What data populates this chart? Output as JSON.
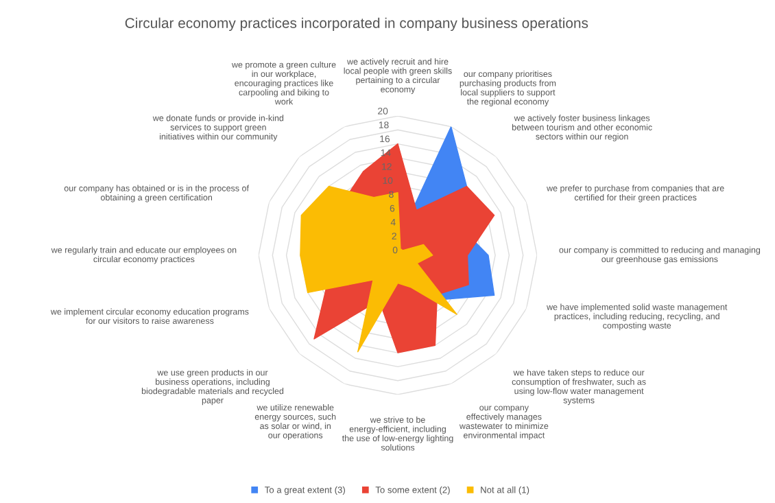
{
  "chart_data": {
    "type": "radar",
    "title": "Circular economy practices incorporated in company business operations",
    "categories": [
      "we actively recruit and hire local people with green skills pertaining to a circular economy",
      "our company prioritises purchasing products from local suppliers to support the regional economy",
      "we actively foster business linkages between tourism and other economic sectors within our region",
      "we prefer to purchase from companies that are certified for their green practices",
      "our company is committed to reducing and managing our greenhouse gas emissions",
      "we have implemented solid waste management practices, including reducing, recycling, and composting waste",
      "we have taken steps to reduce our consumption of freshwater, such as using low-flow water management systems",
      "our company effectively manages wastewater to minimize environmental impact",
      "we strive to be energy-efficient, including the use of low-energy lighting solutions",
      "we utilize renewable energy sources, such as solar or wind, in our operations",
      "we use green products in our business operations, including biodegradable materials and recycled paper",
      "we implement circular economy education programs for our visitors to raise awareness",
      "we regularly train and educate our employees on circular economy practices",
      "our company has obtained or is in the process of obtaining a green certification",
      "we donate funds or provide in-kind services to support green initiatives within our community",
      "we promote a green culture in our workplace, encouraging practices like carpooling and biking to work"
    ],
    "series": [
      {
        "name": "To a great extent (3)",
        "color": "#4285f4",
        "values": [
          2,
          20,
          14,
          10,
          13,
          15,
          9,
          null,
          null,
          8,
          null,
          null,
          null,
          null,
          null,
          null
        ]
      },
      {
        "name": "To some extent (2)",
        "color": "#ea4335",
        "values": [
          16,
          7,
          14,
          15,
          10,
          11,
          8,
          14,
          14,
          7,
          17,
          11,
          null,
          null,
          11,
          13
        ]
      },
      {
        "name": "Not at all (1)",
        "color": "#fbbc04",
        "values": [
          9,
          1,
          1,
          4,
          5,
          3,
          12,
          5,
          4,
          15,
          5,
          14,
          14,
          15,
          14,
          9
        ]
      }
    ],
    "ylim": [
      0,
      20
    ],
    "yticks": [
      0,
      2,
      4,
      6,
      8,
      10,
      12,
      14,
      16,
      18,
      20
    ],
    "grid": true,
    "legend": "bottom"
  }
}
